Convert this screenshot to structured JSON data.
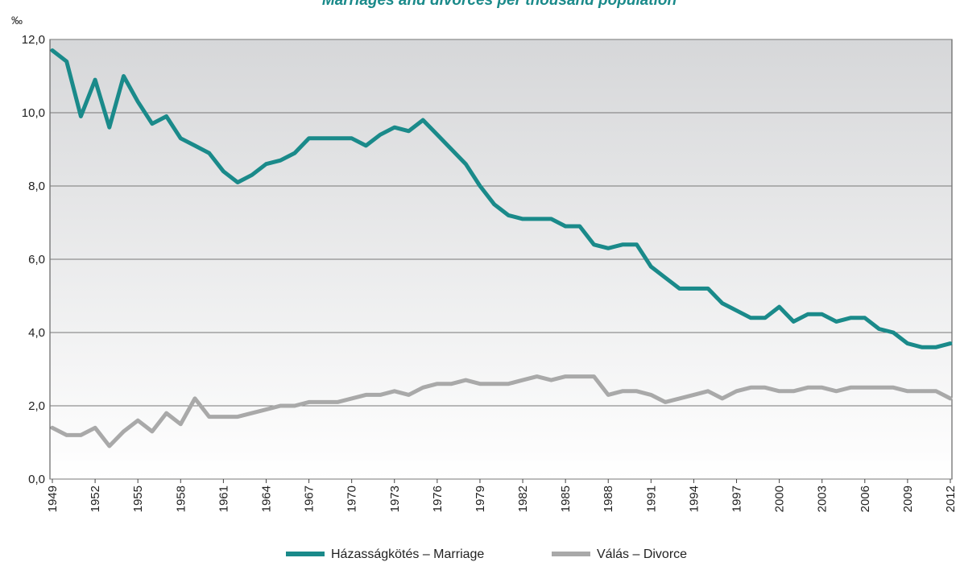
{
  "chart_data": {
    "type": "line",
    "title": "Marriages and divorces per thousand population",
    "y_label": "‰",
    "x": [
      1949,
      1950,
      1951,
      1952,
      1953,
      1954,
      1955,
      1956,
      1957,
      1958,
      1959,
      1960,
      1961,
      1962,
      1963,
      1964,
      1965,
      1966,
      1967,
      1968,
      1969,
      1970,
      1971,
      1972,
      1973,
      1974,
      1975,
      1976,
      1977,
      1978,
      1979,
      1980,
      1981,
      1982,
      1983,
      1984,
      1985,
      1986,
      1987,
      1988,
      1989,
      1990,
      1991,
      1992,
      1993,
      1994,
      1995,
      1996,
      1997,
      1998,
      1999,
      2000,
      2001,
      2002,
      2003,
      2004,
      2005,
      2006,
      2007,
      2008,
      2009,
      2010,
      2011,
      2012
    ],
    "series": [
      {
        "name": "Házasságkötés – Marriage",
        "color": "#1a8a8a",
        "values": [
          11.7,
          11.4,
          9.9,
          10.9,
          9.6,
          11.0,
          10.3,
          9.7,
          9.9,
          9.3,
          9.1,
          8.9,
          8.4,
          8.1,
          8.3,
          8.6,
          8.7,
          8.9,
          9.3,
          9.3,
          9.3,
          9.3,
          9.1,
          9.4,
          9.6,
          9.5,
          9.8,
          9.4,
          9.0,
          8.6,
          8.0,
          7.5,
          7.2,
          7.1,
          7.1,
          7.1,
          6.9,
          6.9,
          6.4,
          6.3,
          6.4,
          6.4,
          5.8,
          5.5,
          5.2,
          5.2,
          5.2,
          4.8,
          4.6,
          4.4,
          4.4,
          4.7,
          4.3,
          4.5,
          4.5,
          4.3,
          4.4,
          4.4,
          4.1,
          4.0,
          3.7,
          3.6,
          3.6,
          3.7
        ]
      },
      {
        "name": "Válás – Divorce",
        "color": "#a9a9a9",
        "values": [
          1.4,
          1.2,
          1.2,
          1.4,
          0.9,
          1.3,
          1.6,
          1.3,
          1.8,
          1.5,
          2.2,
          1.7,
          1.7,
          1.7,
          1.8,
          1.9,
          2.0,
          2.0,
          2.1,
          2.1,
          2.1,
          2.2,
          2.3,
          2.3,
          2.4,
          2.3,
          2.5,
          2.6,
          2.6,
          2.7,
          2.6,
          2.6,
          2.6,
          2.7,
          2.8,
          2.7,
          2.8,
          2.8,
          2.8,
          2.3,
          2.4,
          2.4,
          2.3,
          2.1,
          2.2,
          2.3,
          2.4,
          2.2,
          2.4,
          2.5,
          2.5,
          2.4,
          2.4,
          2.5,
          2.5,
          2.4,
          2.5,
          2.5,
          2.5,
          2.5,
          2.4,
          2.4,
          2.4,
          2.2
        ]
      }
    ],
    "xlim": [
      1949,
      2012
    ],
    "xticks": [
      1949,
      1952,
      1955,
      1958,
      1961,
      1964,
      1967,
      1970,
      1973,
      1976,
      1979,
      1982,
      1985,
      1988,
      1991,
      1994,
      1997,
      2000,
      2003,
      2006,
      2009,
      2012
    ],
    "ylim": [
      0,
      12
    ],
    "yticks": [
      {
        "value": 0,
        "label": "0,0"
      },
      {
        "value": 2,
        "label": "2,0"
      },
      {
        "value": 4,
        "label": "4,0"
      },
      {
        "value": 6,
        "label": "6,0"
      },
      {
        "value": 8,
        "label": "8,0"
      },
      {
        "value": 10,
        "label": "10,0"
      },
      {
        "value": 12,
        "label": "12,0"
      }
    ],
    "grid": true,
    "legend": "bottom"
  }
}
